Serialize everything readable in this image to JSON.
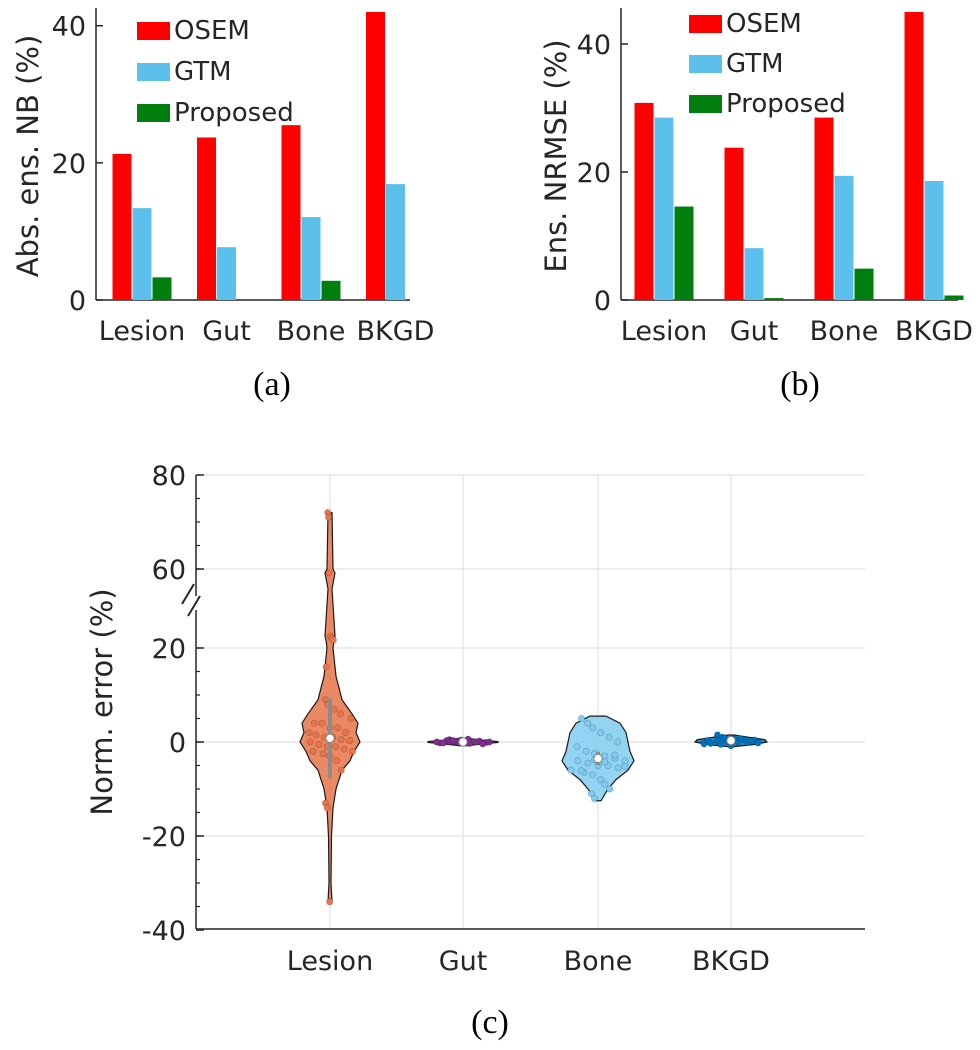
{
  "colors": {
    "osem": "#FF0000",
    "gtm": "#5BC0EB",
    "proposed": "#007F0E",
    "lesion": "#E8744A",
    "gut": "#7E2F8E",
    "bone": "#7FCCF0",
    "bkgd": "#0072BD"
  },
  "chart_data": [
    {
      "id": "a",
      "type": "bar",
      "caption": "(a)",
      "ylabel": "Abs. ens. NB (%)",
      "categories": [
        "Lesion",
        "Gut",
        "Bone",
        "BKGD"
      ],
      "ylim": [
        0,
        42
      ],
      "yticks": [
        0,
        20,
        40
      ],
      "series": [
        {
          "name": "OSEM",
          "values": [
            21.3,
            23.7,
            25.5,
            42.0
          ]
        },
        {
          "name": "GTM",
          "values": [
            13.4,
            7.7,
            12.1,
            16.9
          ]
        },
        {
          "name": "Proposed",
          "values": [
            3.3,
            0.0,
            2.8,
            0.0
          ]
        }
      ],
      "legend": [
        "OSEM",
        "GTM",
        "Proposed"
      ]
    },
    {
      "id": "b",
      "type": "bar",
      "caption": "(b)",
      "ylabel": "Ens. NRMSE (%)",
      "categories": [
        "Lesion",
        "Gut",
        "Bone",
        "BKGD"
      ],
      "ylim": [
        0,
        45
      ],
      "yticks": [
        0,
        20,
        40
      ],
      "series": [
        {
          "name": "OSEM",
          "values": [
            30.8,
            23.8,
            28.5,
            45.0
          ]
        },
        {
          "name": "GTM",
          "values": [
            28.5,
            8.1,
            19.4,
            18.6
          ]
        },
        {
          "name": "Proposed",
          "values": [
            14.6,
            0.3,
            4.9,
            0.7
          ]
        }
      ],
      "legend": [
        "OSEM",
        "GTM",
        "Proposed"
      ]
    },
    {
      "id": "c",
      "type": "violin",
      "caption": "(c)",
      "ylabel": "Norm. error (%)",
      "categories": [
        "Lesion",
        "Gut",
        "Bone",
        "BKGD"
      ],
      "yticks": [
        -40,
        -20,
        0,
        20,
        60,
        80
      ],
      "axis_break": "between 20 and 60",
      "grid": true,
      "medians": [
        0.8,
        0.0,
        -3.5,
        0.3
      ],
      "ranges": [
        [
          -34,
          72
        ],
        [
          -0.8,
          0.8
        ],
        [
          -12.5,
          5.5
        ],
        [
          -1.0,
          1.5
        ]
      ],
      "points": [
        [
          72,
          71,
          58,
          26,
          25,
          24,
          16,
          9,
          8,
          7,
          6,
          5,
          4,
          4,
          3,
          3,
          2,
          2,
          1.5,
          1,
          1,
          0.5,
          0.3,
          0,
          -0.5,
          -1,
          -1,
          -1.5,
          -2,
          -2,
          -2.5,
          -3,
          -4,
          -6,
          -13,
          -14,
          -34
        ],
        [
          0.5,
          0.3,
          0.2,
          0.1,
          0.0,
          -0.1,
          -0.2,
          0.1,
          0.4,
          -0.3,
          0.2,
          0.0,
          -0.2,
          0.3,
          0.1,
          0.6,
          -0.4,
          0.0
        ],
        [
          5,
          4,
          3,
          2,
          1,
          0,
          -1,
          -2,
          -2.5,
          -3,
          -3.5,
          -4,
          -4,
          -4.5,
          -5,
          -5,
          -5.5,
          -6,
          -6.5,
          -7,
          -8,
          -9,
          -10,
          -11,
          -12,
          -3.8,
          -4.2,
          -2.8,
          -5.2,
          -6.1
        ],
        [
          1.5,
          1.0,
          0.8,
          0.6,
          0.5,
          0.4,
          0.3,
          0.2,
          0.1,
          0.0,
          -0.1,
          -0.2,
          -0.3,
          -0.5,
          -0.8,
          0.7,
          0.2,
          -0.4
        ]
      ]
    }
  ]
}
